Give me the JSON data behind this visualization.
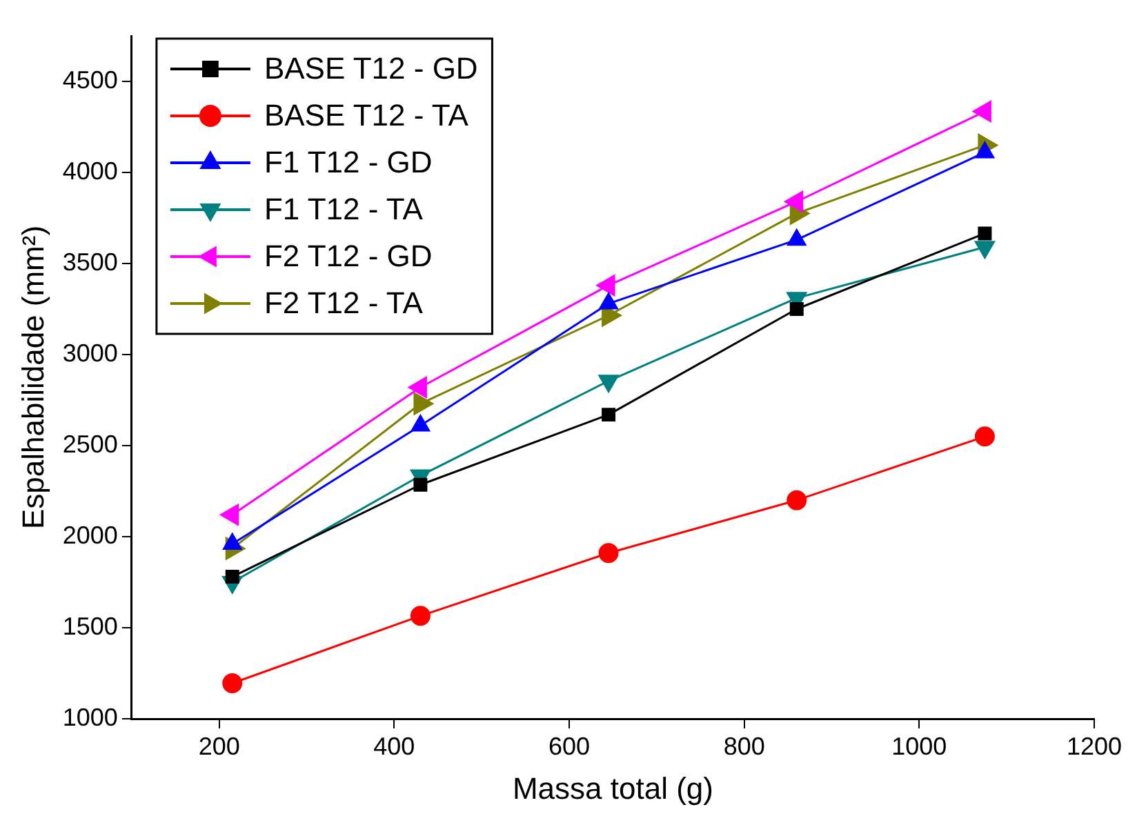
{
  "chart_data": {
    "type": "line",
    "xlabel": "Massa total (g)",
    "ylabel": "Espalhabilidade (mm²)",
    "x": [
      215,
      430,
      645,
      860,
      1075
    ],
    "xlim": [
      100,
      1200
    ],
    "xticks": [
      200,
      400,
      600,
      800,
      1000,
      1200
    ],
    "ylim": [
      1000,
      4750
    ],
    "yticks": [
      1000,
      1500,
      2000,
      2500,
      3000,
      3500,
      4000,
      4500
    ],
    "grid": false,
    "legend": "top left",
    "line_style": "solid",
    "series": [
      {
        "name": "BASE T12 - GD",
        "color": "#000000",
        "marker": "square",
        "values": [
          1780,
          2285,
          2670,
          3250,
          3665
        ]
      },
      {
        "name": "BASE T12 - TA",
        "color": "#ff0000",
        "marker": "circle",
        "values": [
          1195,
          1565,
          1910,
          2200,
          2550
        ]
      },
      {
        "name": "F1 T12 - GD",
        "color": "#0000ff",
        "marker": "triangle",
        "values": [
          1960,
          2610,
          3280,
          3630,
          4110
        ]
      },
      {
        "name": "F1 T12 - TA",
        "color": "#008080",
        "marker": "triangle-down",
        "values": [
          1750,
          2335,
          2855,
          3310,
          3590
        ]
      },
      {
        "name": "F2 T12 - GD",
        "color": "#ff00ff",
        "marker": "triangle-left",
        "values": [
          2120,
          2820,
          3380,
          3840,
          4335
        ]
      },
      {
        "name": "F2 T12 - TA",
        "color": "#808000",
        "marker": "triangle-right",
        "values": [
          1935,
          2730,
          3215,
          3775,
          4150
        ]
      }
    ]
  }
}
